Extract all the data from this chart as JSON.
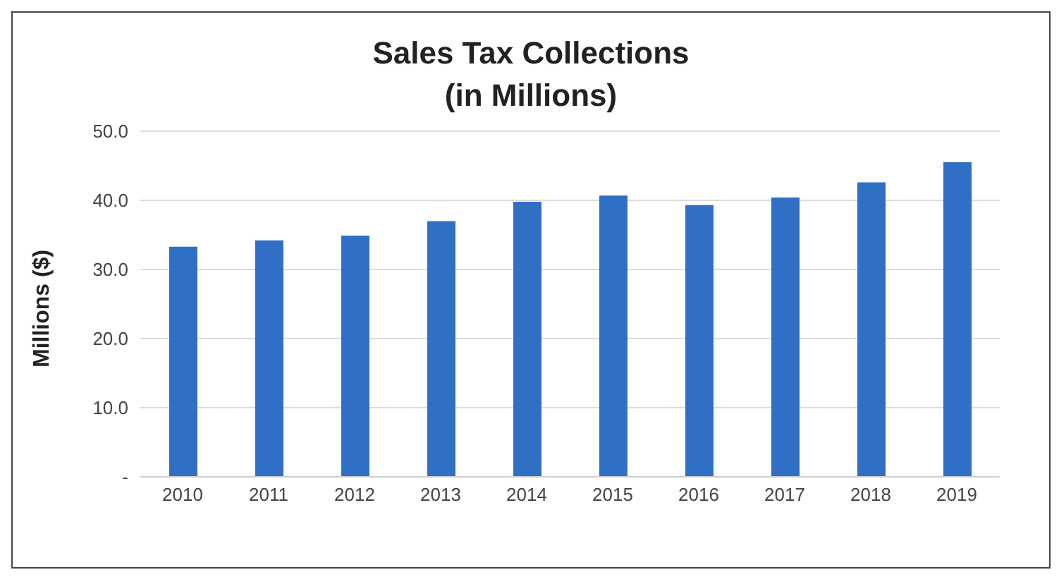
{
  "chart_data": {
    "type": "bar",
    "title": "Sales Tax Collections\n(in Millions)",
    "ylabel": "Millions ($)",
    "categories": [
      "2010",
      "2011",
      "2012",
      "2013",
      "2014",
      "2015",
      "2016",
      "2017",
      "2018",
      "2019"
    ],
    "values": [
      33.3,
      34.2,
      34.9,
      37.0,
      39.8,
      40.7,
      39.3,
      40.4,
      42.6,
      45.5
    ],
    "color": "#2f70c4",
    "ylim": [
      0,
      50
    ],
    "yticks": [
      {
        "value": 0,
        "label": "-"
      },
      {
        "value": 10,
        "label": "10.0"
      },
      {
        "value": 20,
        "label": "20.0"
      },
      {
        "value": 30,
        "label": "30.0"
      },
      {
        "value": 40,
        "label": "40.0"
      },
      {
        "value": 50,
        "label": "50.0"
      }
    ],
    "grid": "y"
  }
}
